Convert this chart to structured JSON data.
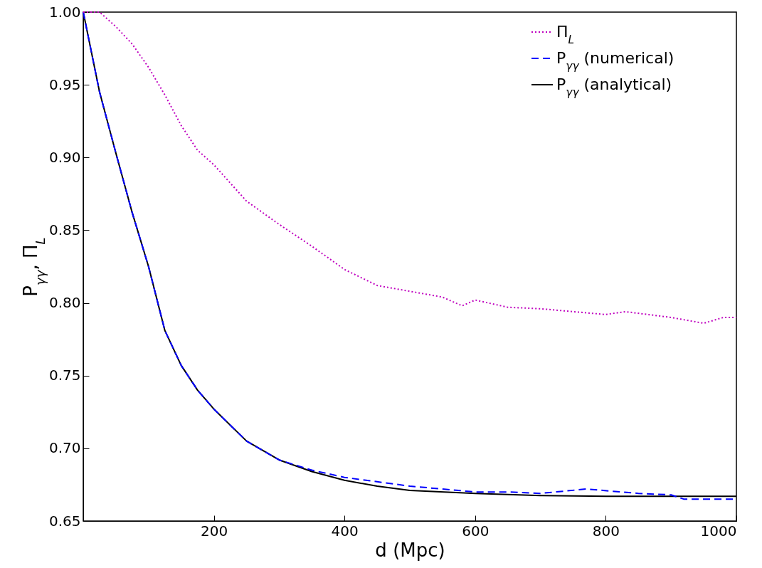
{
  "chart_data": {
    "type": "line",
    "xlabel": "d (Mpc)",
    "ylabel": "P$_{γγ}$, Π$_{L}$",
    "xlim": [
      0,
      1000
    ],
    "xticks": [
      200,
      400,
      600,
      800,
      1000
    ],
    "ylim": [
      0.65,
      1.0
    ],
    "yticks": [
      0.65,
      {
        "value": 0.7,
        "label": "0.70"
      },
      0.75,
      {
        "value": 0.8,
        "label": "0.80"
      },
      0.85,
      {
        "value": 0.9,
        "label": "0.90"
      },
      0.95,
      {
        "value": 1.0,
        "label": "1.00"
      }
    ],
    "grid": false,
    "legend": "top right",
    "marker": "none",
    "series": [
      {
        "name": "Π$_{L}$",
        "color": "#bf00bf",
        "line_style": "dotted",
        "x": [
          0,
          25,
          50,
          75,
          100,
          125,
          150,
          175,
          200,
          250,
          300,
          350,
          400,
          450,
          500,
          550,
          580,
          600,
          650,
          700,
          750,
          800,
          830,
          900,
          950,
          980,
          1000
        ],
        "values": [
          1.0,
          1.0,
          0.99,
          0.978,
          0.962,
          0.943,
          0.922,
          0.905,
          0.895,
          0.87,
          0.854,
          0.839,
          0.823,
          0.812,
          0.808,
          0.804,
          0.798,
          0.802,
          0.797,
          0.796,
          0.794,
          0.792,
          0.794,
          0.79,
          0.786,
          0.79,
          0.79
        ]
      },
      {
        "name": "P$_{γγ}$ (numerical)",
        "color": "#0000ff",
        "line_style": "dashed",
        "x": [
          0,
          25,
          50,
          75,
          100,
          125,
          150,
          175,
          200,
          250,
          300,
          350,
          400,
          450,
          500,
          550,
          600,
          650,
          700,
          770,
          850,
          900,
          920,
          1000
        ],
        "values": [
          1.0,
          0.945,
          0.903,
          0.862,
          0.825,
          0.781,
          0.757,
          0.74,
          0.727,
          0.705,
          0.692,
          0.685,
          0.68,
          0.677,
          0.674,
          0.672,
          0.67,
          0.67,
          0.669,
          0.672,
          0.669,
          0.668,
          0.665,
          0.665
        ]
      },
      {
        "name": "P$_{γγ}$ (analytical)",
        "color": "#000000",
        "line_style": "solid",
        "x": [
          0,
          25,
          50,
          75,
          100,
          125,
          150,
          175,
          200,
          250,
          300,
          350,
          400,
          450,
          500,
          600,
          700,
          800,
          1000
        ],
        "values": [
          1.0,
          0.945,
          0.903,
          0.862,
          0.825,
          0.781,
          0.757,
          0.74,
          0.727,
          0.705,
          0.692,
          0.684,
          0.678,
          0.674,
          0.671,
          0.669,
          0.6675,
          0.667,
          0.667
        ]
      }
    ]
  }
}
